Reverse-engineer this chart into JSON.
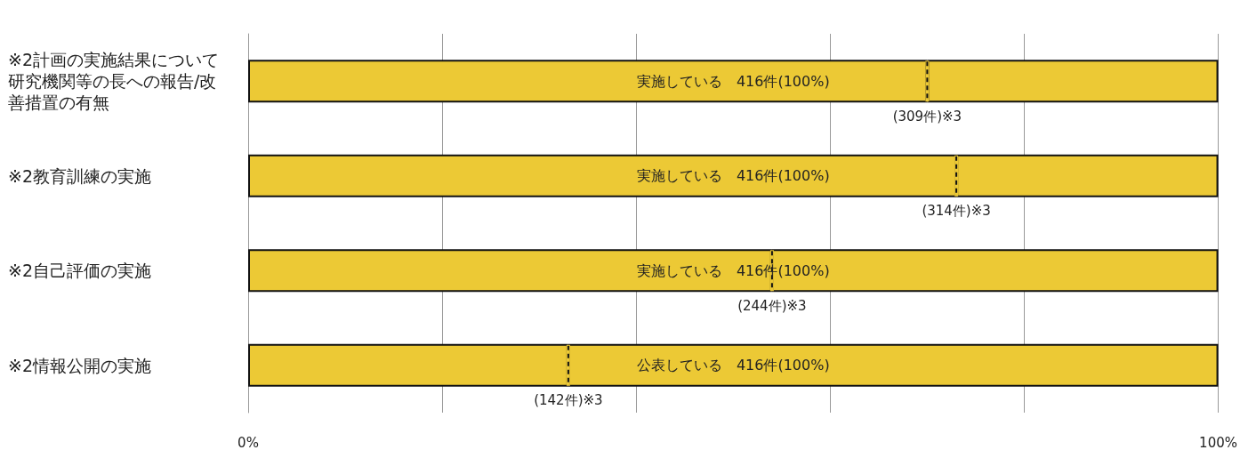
{
  "chart_data": {
    "type": "bar",
    "orientation": "horizontal",
    "stacked": true,
    "categories": [
      "※2計画の実施結果について研究機関等の長への報告/改善措置の有無",
      "※2教育訓練の実施",
      "※2自己評価の実施",
      "※2情報公開の実施"
    ],
    "series": [
      {
        "color": "#ecc935",
        "values": [
          70,
          73,
          54,
          33
        ]
      },
      {
        "color": "#ecc935",
        "values": [
          30,
          27,
          46,
          67
        ]
      }
    ],
    "totals": [
      "実施している　416件(100%)",
      "実施している　416件(100%)",
      "実施している　416件(100%)",
      "公表している　416件(100%)"
    ],
    "xlim": [
      0,
      100
    ],
    "xticks": [
      {
        "value": 0,
        "label": "0%"
      },
      {
        "value": 20,
        "label": null
      },
      {
        "value": 40,
        "label": null
      },
      {
        "value": 60,
        "label": null
      },
      {
        "value": 80,
        "label": null
      },
      {
        "value": 100,
        "label": "100%"
      }
    ],
    "grid": "x",
    "annotations": [
      {
        "text": "(309件)※3",
        "x": 70,
        "y": "※2計画の実施結果について研究機関等の長への報告/改善措置の有無"
      },
      {
        "text": "(314件)※3",
        "x": 73,
        "y": "※2教育訓練の実施"
      },
      {
        "text": "(244件)※3",
        "x": 54,
        "y": "※2自己評価の実施"
      },
      {
        "text": "(142件)※3",
        "x": 33,
        "y": "※2情報公開の実施"
      }
    ]
  }
}
